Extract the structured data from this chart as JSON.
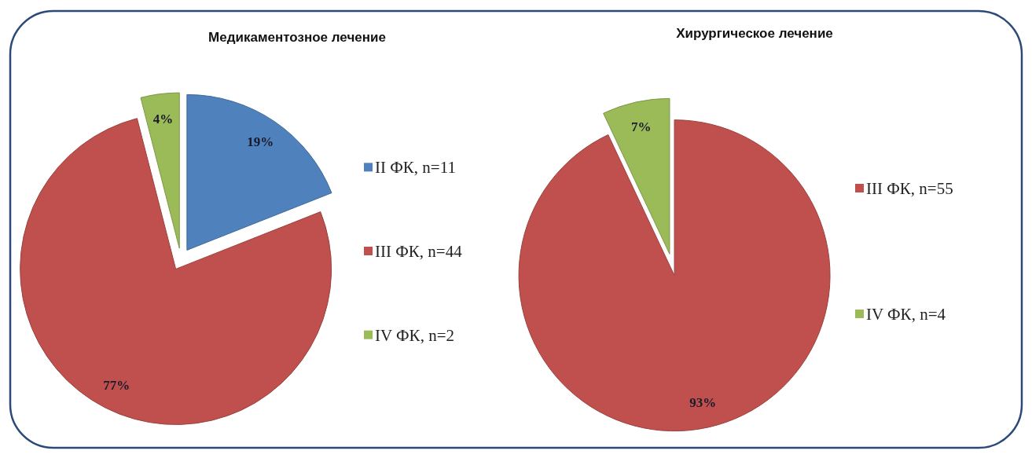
{
  "chart_data": [
    {
      "type": "pie",
      "title": "Медикаментозное лечение",
      "categories": [
        "II ФК, n=11",
        "III ФК, n=44",
        "IV ФК, n=2"
      ],
      "values": [
        19,
        77,
        4
      ],
      "colors": [
        "#4f81bd",
        "#c0504d",
        "#9bbb59"
      ],
      "value_labels": [
        "19%",
        "77%",
        "4%"
      ],
      "legend": "right"
    },
    {
      "type": "pie",
      "title": "Хирургическое лечение",
      "categories": [
        "III ФК, n=55",
        "IV ФК, n=4"
      ],
      "values": [
        93,
        7
      ],
      "colors": [
        "#c0504d",
        "#9bbb59"
      ],
      "value_labels": [
        "93%",
        "7%"
      ],
      "legend": "right"
    }
  ]
}
